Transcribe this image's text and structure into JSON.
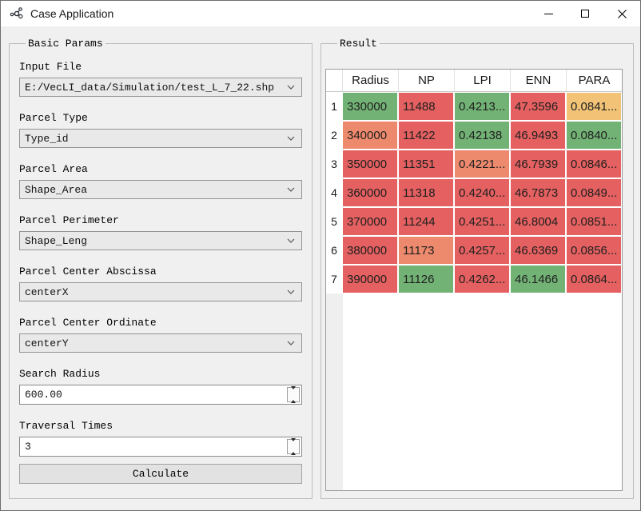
{
  "window": {
    "title": "Case Application",
    "controls": [
      "minimize-icon",
      "maximize-icon",
      "close-icon"
    ],
    "app_icon": "molecule-icon"
  },
  "left_panel": {
    "title": "Basic Params",
    "fields": [
      {
        "label": "Input File",
        "value": "E:/VecLI_data/Simulation/test_L_7_22.shp",
        "type": "combo"
      },
      {
        "label": "Parcel Type",
        "value": "Type_id",
        "type": "combo"
      },
      {
        "label": "Parcel Area",
        "value": "Shape_Area",
        "type": "combo"
      },
      {
        "label": "Parcel Perimeter",
        "value": "Shape_Leng",
        "type": "combo"
      },
      {
        "label": "Parcel Center Abscissa",
        "value": "centerX",
        "type": "combo"
      },
      {
        "label": "Parcel Center Ordinate",
        "value": "centerY",
        "type": "combo"
      },
      {
        "label": "Search Radius",
        "value": "600.00",
        "type": "spin"
      },
      {
        "label": "Traversal Times",
        "value": "3",
        "type": "spin"
      }
    ],
    "calculate_label": "Calculate"
  },
  "result_panel": {
    "title": "Result",
    "table": {
      "columns": [
        "Radius",
        "NP",
        "LPI",
        "ENN",
        "PARA"
      ],
      "rows": [
        {
          "n": "1",
          "cells": [
            {
              "v": "330000",
              "c": "green"
            },
            {
              "v": "11488",
              "c": "red"
            },
            {
              "v": "0.4213...",
              "c": "green"
            },
            {
              "v": "47.3596",
              "c": "red"
            },
            {
              "v": "0.0841...",
              "c": "orange"
            }
          ]
        },
        {
          "n": "2",
          "cells": [
            {
              "v": "340000",
              "c": "salmon"
            },
            {
              "v": "11422",
              "c": "red"
            },
            {
              "v": "0.42138",
              "c": "green"
            },
            {
              "v": "46.9493",
              "c": "red"
            },
            {
              "v": "0.0840...",
              "c": "green"
            }
          ]
        },
        {
          "n": "3",
          "cells": [
            {
              "v": "350000",
              "c": "red"
            },
            {
              "v": "11351",
              "c": "red"
            },
            {
              "v": "0.4221...",
              "c": "salmon"
            },
            {
              "v": "46.7939",
              "c": "red"
            },
            {
              "v": "0.0846...",
              "c": "red"
            }
          ]
        },
        {
          "n": "4",
          "cells": [
            {
              "v": "360000",
              "c": "red"
            },
            {
              "v": "11318",
              "c": "red"
            },
            {
              "v": "0.4240...",
              "c": "red"
            },
            {
              "v": "46.7873",
              "c": "red"
            },
            {
              "v": "0.0849...",
              "c": "red"
            }
          ]
        },
        {
          "n": "5",
          "cells": [
            {
              "v": "370000",
              "c": "red"
            },
            {
              "v": "11244",
              "c": "red"
            },
            {
              "v": "0.4251...",
              "c": "red"
            },
            {
              "v": "46.8004",
              "c": "red"
            },
            {
              "v": "0.0851...",
              "c": "red"
            }
          ]
        },
        {
          "n": "6",
          "cells": [
            {
              "v": "380000",
              "c": "red"
            },
            {
              "v": "11173",
              "c": "salmon"
            },
            {
              "v": "0.4257...",
              "c": "red"
            },
            {
              "v": "46.6369",
              "c": "red"
            },
            {
              "v": "0.0856...",
              "c": "red"
            }
          ]
        },
        {
          "n": "7",
          "cells": [
            {
              "v": "390000",
              "c": "red"
            },
            {
              "v": "11126",
              "c": "green"
            },
            {
              "v": "0.4262...",
              "c": "red"
            },
            {
              "v": "46.1466",
              "c": "green"
            },
            {
              "v": "0.0864...",
              "c": "red"
            }
          ]
        }
      ]
    }
  },
  "colors": {
    "green": "#72b275",
    "red": "#e56060",
    "salmon": "#ed8a6e",
    "orange": "#f2c377"
  }
}
